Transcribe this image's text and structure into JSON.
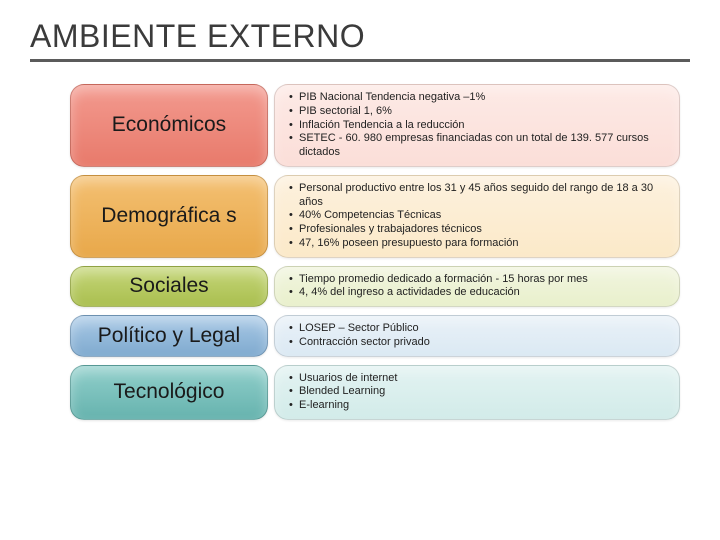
{
  "title": "AMBIENTE EXTERNO",
  "rows": [
    {
      "label": "Económicos",
      "pill_bg": "linear-gradient(180deg,#f39a8f 0%,#e87a6b 100%)",
      "content_bg": "linear-gradient(180deg,#fdeae6 0%,#fbded8 100%)",
      "bullets": [
        "PIB Nacional Tendencia negativa –1%",
        "PIB sectorial 1, 6%",
        "Inflación Tendencia a la reducción",
        "SETEC - 60. 980 empresas financiadas con un total de 139. 577 cursos dictados"
      ]
    },
    {
      "label": "Demográfica s",
      "pill_bg": "linear-gradient(180deg,#f4c072 0%,#e8a84a 100%)",
      "content_bg": "linear-gradient(180deg,#fdf1de 0%,#fbe9c8 100%)",
      "bullets": [
        "Personal productivo entre los 31 y 45 años seguido del rango de 18 a 30 años",
        "40% Competencias Técnicas",
        "Profesionales y trabajadores técnicos",
        "47, 16% poseen presupuesto para formación"
      ]
    },
    {
      "label": "Sociales",
      "pill_bg": "linear-gradient(180deg,#c5d679 0%,#aabf4f 100%)",
      "content_bg": "linear-gradient(180deg,#f1f5df 0%,#e9f0cc 100%)",
      "bullets": [
        "Tiempo promedio dedicado a formación -  15 horas por mes",
        "4, 4% del ingreso a actividades de educación"
      ]
    },
    {
      "label": "Político y Legal",
      "pill_bg": "linear-gradient(180deg,#a9c9e6 0%,#7faacf 100%)",
      "content_bg": "linear-gradient(180deg,#e9f1f8 0%,#dbe9f3 100%)",
      "bullets": [
        "LOSEP – Sector Público",
        "Contracción sector privado"
      ]
    },
    {
      "label": "Tecnológico",
      "pill_bg": "linear-gradient(180deg,#91cfcb 0%,#66b3ae 100%)",
      "content_bg": "linear-gradient(180deg,#e3f3f2 0%,#d2ebe9 100%)",
      "bullets": [
        "Usuarios de internet",
        "Blended Learning",
        "E-learning"
      ]
    }
  ]
}
